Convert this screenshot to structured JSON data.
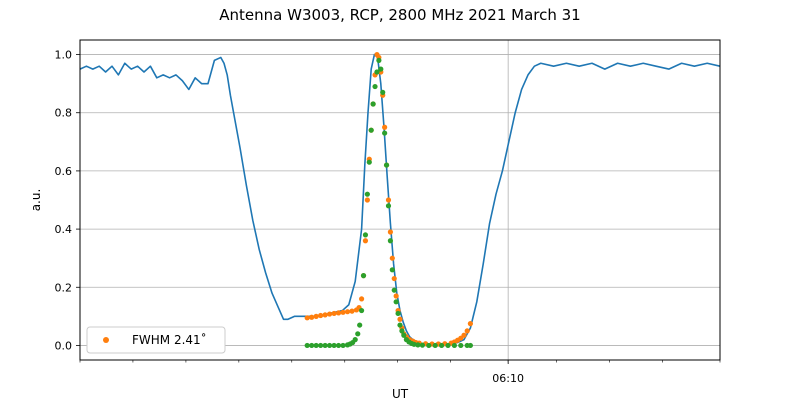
{
  "chart_data": {
    "type": "line",
    "title": "Antenna W3003, RCP, 2800 MHz 2021 March 31",
    "xlabel": "UT",
    "ylabel": "a.u.",
    "ylim": [
      -0.05,
      1.05
    ],
    "yticks": [
      0.0,
      0.2,
      0.4,
      0.6,
      0.8,
      1.0
    ],
    "ytick_labels": [
      "0.0",
      "0.2",
      "0.4",
      "0.6",
      "0.8",
      "1.0"
    ],
    "xlim": [
      0,
      1
    ],
    "xtick_label": "06:10",
    "xtick_pos": 0.669,
    "minor_xticks": [
      0.0,
      0.0827,
      0.1655,
      0.2482,
      0.3309,
      0.4137,
      0.4964,
      0.5791,
      0.669,
      0.7446,
      0.8273,
      0.9101,
      1.0
    ],
    "grid": true,
    "legend": {
      "placement": "lower-left",
      "entries": [
        {
          "label": "FWHM 2.41$^\\circ$",
          "display": "FWHM 2.41˚",
          "color": "#ff7f0e"
        }
      ]
    },
    "colors": {
      "line": "#1f77b4",
      "fit": "#ff7f0e",
      "model": "#2ca02c"
    },
    "series": [
      {
        "kind": "line",
        "color": "#1f77b4",
        "x": [
          0.0,
          0.01,
          0.02,
          0.03,
          0.04,
          0.05,
          0.06,
          0.07,
          0.08,
          0.09,
          0.1,
          0.11,
          0.12,
          0.13,
          0.14,
          0.15,
          0.16,
          0.17,
          0.18,
          0.19,
          0.2,
          0.21,
          0.22,
          0.225,
          0.23,
          0.235,
          0.24,
          0.25,
          0.26,
          0.27,
          0.28,
          0.29,
          0.3,
          0.31,
          0.318,
          0.325,
          0.335,
          0.35,
          0.37,
          0.39,
          0.41,
          0.42,
          0.43,
          0.44,
          0.445,
          0.45,
          0.455,
          0.46,
          0.465,
          0.47,
          0.475,
          0.48,
          0.485,
          0.49,
          0.495,
          0.5,
          0.505,
          0.51,
          0.515,
          0.52,
          0.53,
          0.54,
          0.55,
          0.56,
          0.57,
          0.58,
          0.59,
          0.6,
          0.61,
          0.62,
          0.63,
          0.64,
          0.65,
          0.66,
          0.67,
          0.68,
          0.69,
          0.7,
          0.71,
          0.72,
          0.74,
          0.76,
          0.78,
          0.8,
          0.82,
          0.84,
          0.86,
          0.88,
          0.9,
          0.92,
          0.94,
          0.96,
          0.98,
          1.0
        ],
        "y": [
          0.95,
          0.96,
          0.95,
          0.96,
          0.94,
          0.96,
          0.93,
          0.97,
          0.95,
          0.96,
          0.94,
          0.96,
          0.92,
          0.93,
          0.92,
          0.93,
          0.91,
          0.88,
          0.92,
          0.9,
          0.9,
          0.98,
          0.99,
          0.97,
          0.93,
          0.86,
          0.8,
          0.68,
          0.55,
          0.43,
          0.33,
          0.25,
          0.18,
          0.13,
          0.09,
          0.09,
          0.1,
          0.1,
          0.1,
          0.11,
          0.12,
          0.14,
          0.22,
          0.4,
          0.62,
          0.8,
          0.95,
          1.0,
          0.99,
          0.9,
          0.75,
          0.58,
          0.42,
          0.28,
          0.18,
          0.12,
          0.08,
          0.05,
          0.03,
          0.02,
          0.01,
          0.0,
          0.0,
          0.01,
          0.0,
          0.01,
          0.01,
          0.02,
          0.06,
          0.15,
          0.28,
          0.42,
          0.52,
          0.6,
          0.7,
          0.8,
          0.88,
          0.93,
          0.96,
          0.97,
          0.96,
          0.97,
          0.96,
          0.97,
          0.95,
          0.97,
          0.96,
          0.97,
          0.96,
          0.95,
          0.97,
          0.96,
          0.97,
          0.96
        ]
      },
      {
        "kind": "scatter",
        "name": "FWHM 2.41˚",
        "color": "#ff7f0e",
        "x": [
          0.355,
          0.362,
          0.369,
          0.376,
          0.383,
          0.39,
          0.397,
          0.404,
          0.411,
          0.418,
          0.425,
          0.432,
          0.436,
          0.44,
          0.443,
          0.446,
          0.449,
          0.452,
          0.455,
          0.458,
          0.461,
          0.464,
          0.467,
          0.47,
          0.473,
          0.476,
          0.479,
          0.482,
          0.485,
          0.488,
          0.491,
          0.494,
          0.497,
          0.5,
          0.503,
          0.506,
          0.51,
          0.515,
          0.52,
          0.525,
          0.53,
          0.54,
          0.55,
          0.56,
          0.57,
          0.58,
          0.585,
          0.59,
          0.595,
          0.6,
          0.605,
          0.61
        ],
        "y": [
          0.095,
          0.097,
          0.1,
          0.103,
          0.105,
          0.108,
          0.11,
          0.112,
          0.114,
          0.116,
          0.118,
          0.122,
          0.13,
          0.16,
          0.24,
          0.36,
          0.5,
          0.64,
          0.74,
          0.83,
          0.93,
          1.0,
          0.99,
          0.94,
          0.86,
          0.75,
          0.62,
          0.5,
          0.39,
          0.3,
          0.23,
          0.17,
          0.12,
          0.09,
          0.06,
          0.04,
          0.03,
          0.02,
          0.015,
          0.01,
          0.008,
          0.006,
          0.005,
          0.005,
          0.006,
          0.008,
          0.012,
          0.018,
          0.025,
          0.035,
          0.05,
          0.075
        ]
      },
      {
        "kind": "scatter",
        "name": "model",
        "color": "#2ca02c",
        "x": [
          0.355,
          0.362,
          0.369,
          0.376,
          0.383,
          0.39,
          0.397,
          0.404,
          0.411,
          0.418,
          0.422,
          0.426,
          0.43,
          0.434,
          0.437,
          0.44,
          0.443,
          0.446,
          0.449,
          0.452,
          0.455,
          0.458,
          0.461,
          0.464,
          0.467,
          0.47,
          0.473,
          0.476,
          0.479,
          0.482,
          0.485,
          0.488,
          0.491,
          0.494,
          0.497,
          0.5,
          0.503,
          0.506,
          0.51,
          0.514,
          0.518,
          0.522,
          0.528,
          0.535,
          0.545,
          0.555,
          0.565,
          0.575,
          0.585,
          0.595,
          0.605,
          0.61
        ],
        "y": [
          0.0,
          0.0,
          0.0,
          0.0,
          0.0,
          0.0,
          0.0,
          0.0,
          0.0,
          0.002,
          0.005,
          0.01,
          0.02,
          0.04,
          0.07,
          0.12,
          0.24,
          0.38,
          0.52,
          0.63,
          0.74,
          0.83,
          0.89,
          0.94,
          0.98,
          0.95,
          0.87,
          0.73,
          0.62,
          0.48,
          0.36,
          0.26,
          0.19,
          0.15,
          0.11,
          0.07,
          0.05,
          0.035,
          0.02,
          0.012,
          0.007,
          0.004,
          0.002,
          0.001,
          0.0,
          0.0,
          0.0,
          0.0,
          0.0,
          0.0,
          0.0,
          0.0
        ]
      }
    ]
  }
}
